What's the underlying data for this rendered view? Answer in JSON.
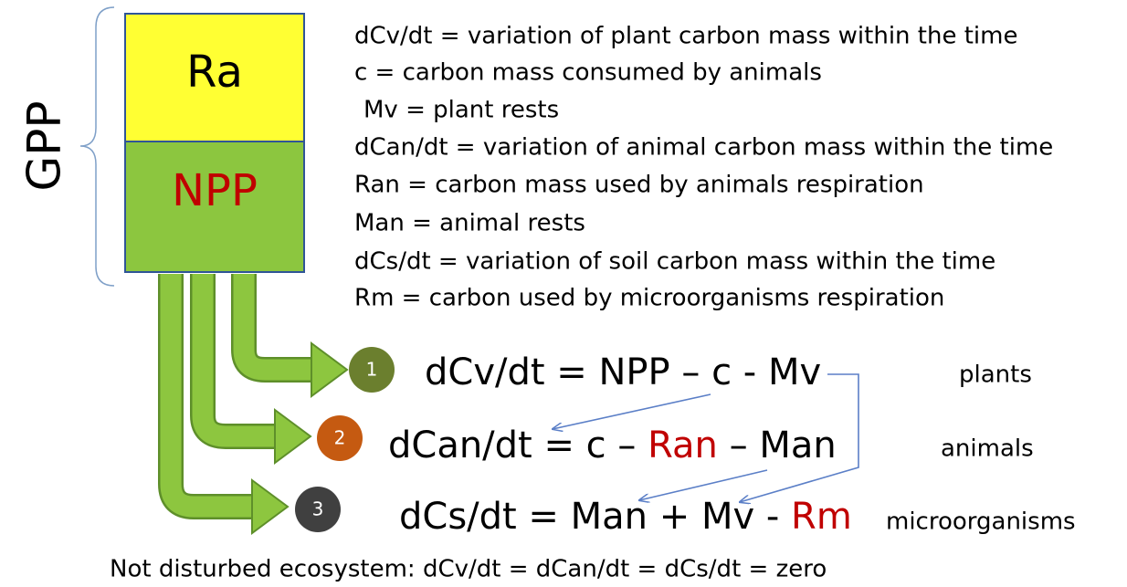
{
  "gpp": "GPP",
  "box": {
    "top": "Ra",
    "bottom": "NPP"
  },
  "definitions": [
    "dCv/dt = variation of plant carbon mass within the time",
    "c = carbon mass consumed by animals",
    "Mv = plant rests",
    "dCan/dt = variation of animal carbon mass within the time",
    "Ran = carbon mass used by animals respiration",
    "Man = animal rests",
    "dCs/dt = variation of soil carbon mass within the time",
    "Rm = carbon used by microorganisms respiration"
  ],
  "equations": [
    {
      "number": "1",
      "parts": [
        "dCv/dt = NPP – c - Mv"
      ],
      "compartment": "plants"
    },
    {
      "number": "2",
      "parts": [
        "dCan/dt = c – ",
        "Ran",
        " – Man"
      ],
      "compartment": "animals"
    },
    {
      "number": "3",
      "parts": [
        "dCs/dt = Man + Mv - ",
        "Rm"
      ],
      "compartment": "microorganisms"
    }
  ],
  "footer": "Not disturbed ecosystem: dCv/dt = dCan/dt = dCs/dt = zero"
}
